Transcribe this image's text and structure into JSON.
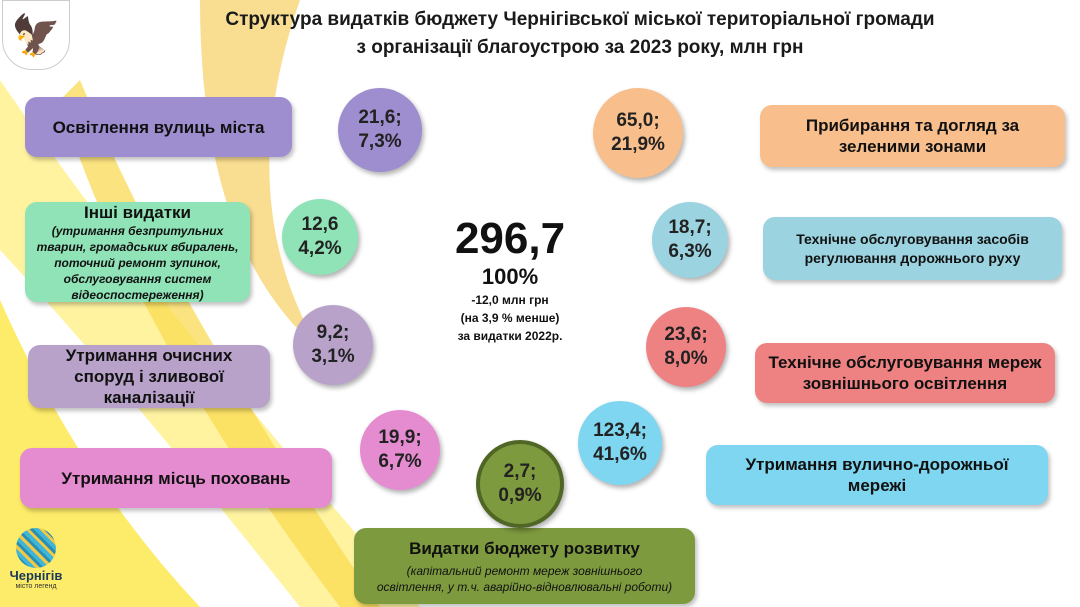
{
  "title": {
    "line1": "Структура видатків бюджету Чернігівської міської територіальної громади",
    "line2": "з організації благоустрою за 2023 року, млн грн"
  },
  "center": {
    "total": "296,7",
    "percent": "100%",
    "change": "-12,0 млн грн",
    "change_pct": "(на 3,9 % менше)",
    "compare": "за видатки 2022р."
  },
  "items": [
    {
      "label": "Освітлення вулиць міста",
      "sub": "",
      "value": "21,6;",
      "share": "7,3%",
      "color": "#9e8dcf"
    },
    {
      "label": "Інші видатки",
      "sub": "(утримання безпритульних тварин, громадських вбиралень, поточний ремонт зупинок, обслуговування систем відеоспостереження)",
      "value": "12,6",
      "share": "4,2%",
      "color": "#8fe3b6"
    },
    {
      "label": "Утримання очисних споруд і зливової каналізації",
      "sub": "",
      "value": "9,2;",
      "share": "3,1%",
      "color": "#b8a2ca"
    },
    {
      "label": "Утримання місць поховань",
      "sub": "",
      "value": "19,9;",
      "share": "6,7%",
      "color": "#e58bd0"
    },
    {
      "label": "Видатки бюджету розвитку",
      "sub": "(капітальний ремонт мереж зовнішнього освітлення, у т.ч. аварійно-відновлювальні роботи)",
      "value": "2,7;",
      "share": "0,9%",
      "color": "#7e9a3e"
    },
    {
      "label": "Прибирання та догляд за зеленими зонами",
      "sub": "",
      "value": "65,0;",
      "share": "21,9%",
      "color": "#f8bf8d"
    },
    {
      "label": "Технічне обслуговування засобів регулювання дорожнього руху",
      "sub": "",
      "value": "18,7;",
      "share": "6,3%",
      "color": "#9bd3e0"
    },
    {
      "label": "Технічне обслуговування мереж зовнішнього освітлення",
      "sub": "",
      "value": "23,6;",
      "share": "8,0%",
      "color": "#ee8283"
    },
    {
      "label": "Утримання вулично-дорожньої мережі",
      "sub": "",
      "value": "123,4;",
      "share": "41,6%",
      "color": "#7fd6f0"
    }
  ],
  "city_logo": {
    "name": "Чернігів",
    "tagline": "місто легенд"
  }
}
